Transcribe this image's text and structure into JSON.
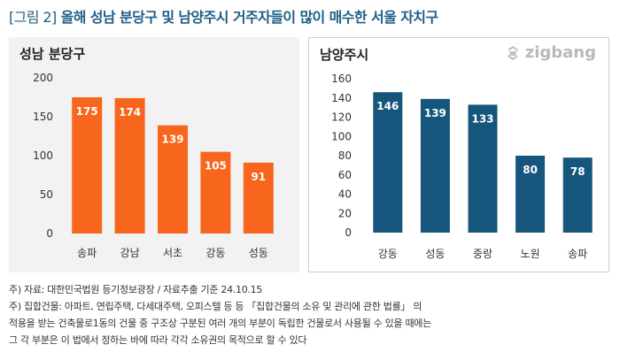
{
  "title": {
    "prefix": "[그림 2]",
    "text": "올해 성남 분당구 및 남양주시 거주자들이 많이 매수한 서울 자치구"
  },
  "brand": {
    "name": "zigbang",
    "icon": "zigbang-logo-icon"
  },
  "colors": {
    "left_bar": "#f7661c",
    "right_bar": "#17567c",
    "title": "#1f5e86"
  },
  "chart_data": [
    {
      "type": "bar",
      "title": "성남 분당구",
      "categories": [
        "송파",
        "강남",
        "서초",
        "강동",
        "성동"
      ],
      "values": [
        175,
        174,
        139,
        105,
        91
      ],
      "yticks": [
        "0",
        "50",
        "100",
        "150",
        "200"
      ],
      "ylim": [
        0,
        200
      ],
      "grid": false,
      "xlabel": "",
      "ylabel": ""
    },
    {
      "type": "bar",
      "title": "남양주시",
      "categories": [
        "강동",
        "성동",
        "중랑",
        "노원",
        "송파"
      ],
      "values": [
        146,
        139,
        133,
        80,
        78
      ],
      "yticks": [
        "0",
        "20",
        "40",
        "60",
        "80",
        "100",
        "120",
        "140",
        "160"
      ],
      "ylim": [
        0,
        160
      ],
      "grid": false,
      "xlabel": "",
      "ylabel": ""
    }
  ],
  "notes": [
    "주) 자료: 대한민국법원 등기정보광장 / 자료추출 기준 24.10.15",
    "주) 집합건물: 아파트, 연립주택, 다세대주택, 오피스텔 등 등 「집합건물의 소유 및 관리에 관한 법률」 의",
    "적용을 받는 건축물로1동의 건물 중 구조상 구분된 여러 개의 부분이 독립한 건물로서 사용될 수 있을 때에는",
    "그 각 부분은 이 법에서 정하는 바에 따라 각각 소유권의 목적으로 할 수 있다"
  ]
}
